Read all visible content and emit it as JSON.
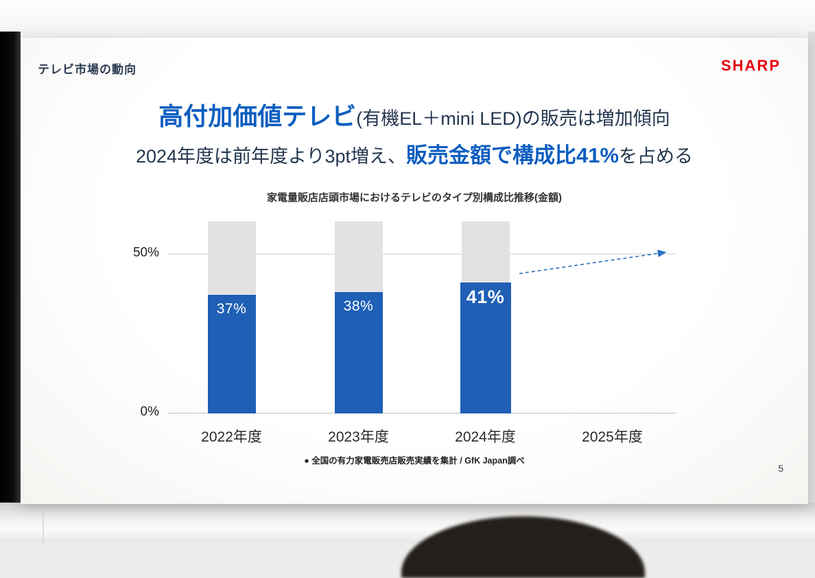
{
  "slide": {
    "header": {
      "section_title": "テレビ市場の動向",
      "brand": "SHARP"
    },
    "headline": {
      "line1_highlight": "高付加価値テレビ",
      "line1_rest": "(有機EL＋mini LED)の販売は増加傾向",
      "line2_pre": "2024年度は前年度より3pt増え、",
      "line2_highlight": "販売金額で構成比41%",
      "line2_post": "を占める"
    },
    "chart": {
      "title": "家電量販店店頭市場におけるテレビのタイプ別構成比推移(金額)",
      "y_tick_top": "50%",
      "y_tick_bottom": "0%",
      "footnote": "● 全国の有力家電販売店販売実績を集計 / GfK Japan調べ"
    },
    "page_number": "5"
  },
  "chart_data": {
    "type": "bar",
    "title": "家電量販店店頭市場におけるテレビのタイプ別構成比推移(金額)",
    "categories": [
      "2022年度",
      "2023年度",
      "2024年度",
      "2025年度"
    ],
    "series": [
      {
        "name": "高付加価値テレビ(有機EL＋mini LED)の販売金額構成比",
        "values": [
          37,
          38,
          41,
          null
        ]
      }
    ],
    "unit": "%",
    "value_labels": [
      "37%",
      "38%",
      "41%"
    ],
    "ylim": [
      0,
      60
    ],
    "gridlines": [
      50
    ],
    "y_ticks_shown": [
      "50%",
      "0%"
    ],
    "background_bar_height": 60,
    "emphasized_category": "2024年度",
    "trend_arrow": "2024年度の棒の上から2025年度方向へ右上がりの青い点線矢印"
  },
  "colors": {
    "accent_blue": "#0d5ec0",
    "bar_blue": "#1f5fb5",
    "bar_background_gray": "#e2e2e2",
    "dark_text": "#24364f",
    "sharp_red": "#e8000d",
    "axis_gray": "#cfcfcd"
  }
}
